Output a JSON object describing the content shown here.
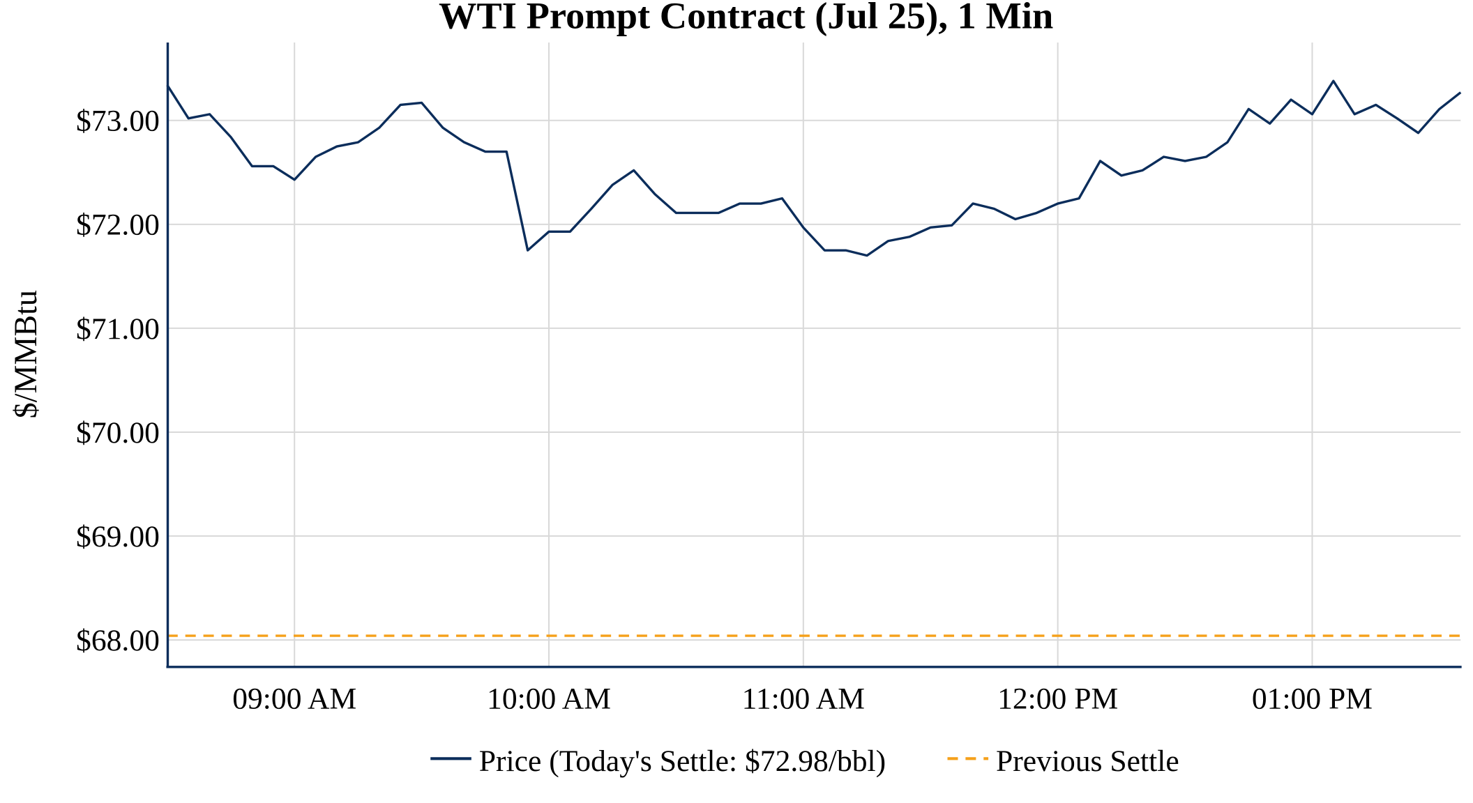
{
  "chart_data": {
    "type": "line",
    "title": "WTI Prompt Contract (Jul 25), 1 Min",
    "xlabel": "",
    "ylabel": "$/MMBtu",
    "xlim": [
      "08:30",
      "13:35"
    ],
    "ylim": [
      67.74,
      73.75
    ],
    "grid": true,
    "legend_placement": "bottom",
    "x_ticks": [
      {
        "time": "09:00",
        "label": "09:00 AM"
      },
      {
        "time": "10:00",
        "label": "10:00 AM"
      },
      {
        "time": "11:00",
        "label": "11:00 AM"
      },
      {
        "time": "12:00",
        "label": "12:00 PM"
      },
      {
        "time": "13:00",
        "label": "01:00 PM"
      }
    ],
    "y_ticks": [
      {
        "value": 68,
        "label": "$68.00"
      },
      {
        "value": 69,
        "label": "$69.00"
      },
      {
        "value": 70,
        "label": "$70.00"
      },
      {
        "value": 71,
        "label": "$71.00"
      },
      {
        "value": 72,
        "label": "$72.00"
      },
      {
        "value": 73,
        "label": "$73.00"
      }
    ],
    "series": [
      {
        "name": "Price (Today's Settle: $72.98/bbl)",
        "color": "#0b2d5b",
        "style": "solid",
        "x": [
          "08:30",
          "08:35",
          "08:40",
          "08:45",
          "08:50",
          "08:55",
          "09:00",
          "09:05",
          "09:10",
          "09:15",
          "09:20",
          "09:25",
          "09:30",
          "09:35",
          "09:40",
          "09:45",
          "09:50",
          "09:55",
          "10:00",
          "10:05",
          "10:10",
          "10:15",
          "10:20",
          "10:25",
          "10:30",
          "10:35",
          "10:40",
          "10:45",
          "10:50",
          "10:55",
          "11:00",
          "11:05",
          "11:10",
          "11:15",
          "11:20",
          "11:25",
          "11:30",
          "11:35",
          "11:40",
          "11:45",
          "11:50",
          "11:55",
          "12:00",
          "12:05",
          "12:10",
          "12:15",
          "12:20",
          "12:25",
          "12:30",
          "12:35",
          "12:40",
          "12:45",
          "12:50",
          "12:55",
          "13:00",
          "13:05",
          "13:10",
          "13:15",
          "13:20",
          "13:25",
          "13:30",
          "13:35"
        ],
        "values": [
          73.34,
          73.02,
          73.06,
          72.84,
          72.56,
          72.56,
          72.43,
          72.65,
          72.75,
          72.79,
          72.93,
          73.15,
          73.17,
          72.93,
          72.79,
          72.7,
          72.7,
          71.75,
          71.93,
          71.93,
          72.15,
          72.38,
          72.52,
          72.29,
          72.11,
          72.11,
          72.11,
          72.2,
          72.2,
          72.25,
          71.97,
          71.75,
          71.75,
          71.7,
          71.84,
          71.88,
          71.97,
          71.99,
          72.2,
          72.15,
          72.05,
          72.11,
          72.2,
          72.25,
          72.61,
          72.47,
          72.52,
          72.65,
          72.61,
          72.65,
          72.79,
          73.11,
          72.97,
          73.2,
          73.06,
          73.38,
          73.06,
          73.15,
          73.02,
          72.88,
          73.11,
          73.27
        ]
      },
      {
        "name": "Previous Settle",
        "color": "#f5a01a",
        "style": "dashed",
        "x": [
          "08:30",
          "13:35"
        ],
        "values": [
          68.04,
          68.04
        ]
      }
    ]
  }
}
